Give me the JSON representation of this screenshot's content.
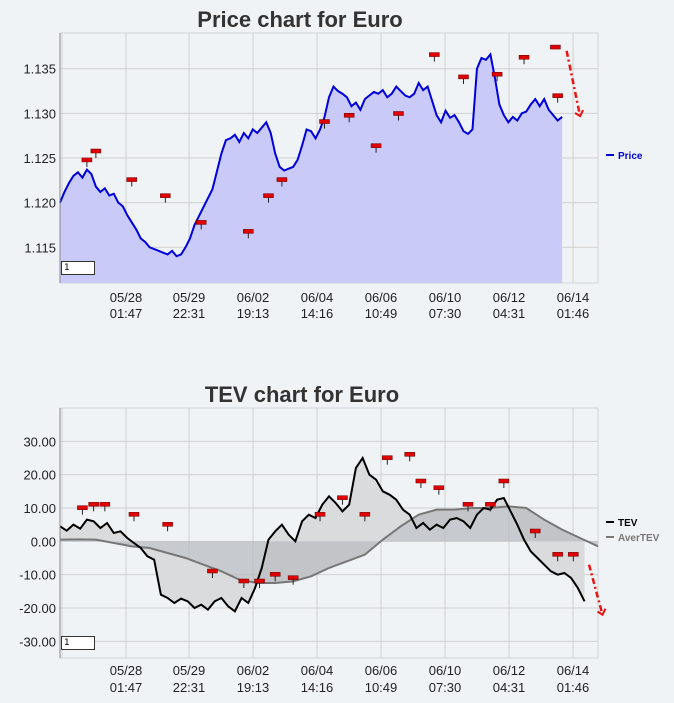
{
  "chart_data": [
    {
      "type": "area",
      "title": "Price chart for Euro",
      "ylim": [
        1.111,
        1.139
      ],
      "yticks": [
        "1.115",
        "1.120",
        "1.125",
        "1.130",
        "1.135"
      ],
      "ytick_values": [
        1.115,
        1.12,
        1.125,
        1.13,
        1.135
      ],
      "xticks": [
        {
          "date": "05/28",
          "time": "01:47"
        },
        {
          "date": "05/29",
          "time": "22:31"
        },
        {
          "date": "06/02",
          "time": "19:13"
        },
        {
          "date": "06/04",
          "time": "14:16"
        },
        {
          "date": "06/06",
          "time": "10:49"
        },
        {
          "date": "06/10",
          "time": "07:30"
        },
        {
          "date": "06/12",
          "time": "04:31"
        },
        {
          "date": "06/14",
          "time": "01:46"
        }
      ],
      "grid": true,
      "legend_position": "right",
      "series": [
        {
          "name": "Price",
          "color": "#0000dd",
          "fill": "#c9caf8",
          "x": [
            0,
            2,
            4,
            6,
            8,
            10,
            12,
            14,
            16,
            18,
            20,
            22,
            24,
            26,
            28,
            30,
            32,
            34,
            36,
            38,
            40,
            42,
            44,
            46,
            48,
            50,
            52,
            54,
            56,
            58,
            60,
            62,
            64,
            66,
            68,
            70,
            72,
            74,
            76,
            78,
            80,
            82,
            84,
            86,
            88,
            90,
            92,
            94,
            96,
            98,
            100,
            102,
            104,
            106,
            108,
            110,
            112,
            114,
            116,
            118,
            120,
            122,
            124,
            126,
            128,
            130,
            132,
            134,
            136,
            138,
            140,
            142,
            144,
            146,
            148,
            150,
            152,
            154,
            156,
            158,
            160,
            162,
            164,
            166,
            168,
            170,
            172,
            174,
            176,
            178,
            180,
            182,
            184,
            186,
            188,
            190,
            192,
            194,
            196,
            198,
            200,
            202,
            204,
            206,
            208,
            210,
            212,
            214,
            216,
            218,
            220,
            222,
            224
          ],
          "values": [
            1.12,
            1.1212,
            1.1222,
            1.123,
            1.1234,
            1.1228,
            1.1237,
            1.1232,
            1.1218,
            1.1212,
            1.1216,
            1.1208,
            1.121,
            1.12,
            1.1196,
            1.1186,
            1.1178,
            1.117,
            1.116,
            1.1156,
            1.115,
            1.1148,
            1.1146,
            1.1144,
            1.1142,
            1.1146,
            1.114,
            1.1142,
            1.115,
            1.116,
            1.1175,
            1.1185,
            1.1195,
            1.1205,
            1.1215,
            1.1235,
            1.1255,
            1.127,
            1.1272,
            1.1276,
            1.1268,
            1.1278,
            1.1272,
            1.1282,
            1.1278,
            1.1284,
            1.129,
            1.1278,
            1.1255,
            1.124,
            1.1236,
            1.1238,
            1.124,
            1.1248,
            1.1264,
            1.1282,
            1.128,
            1.1272,
            1.1282,
            1.1296,
            1.1318,
            1.133,
            1.1325,
            1.1322,
            1.1318,
            1.1308,
            1.1312,
            1.1304,
            1.1316,
            1.132,
            1.1324,
            1.1322,
            1.1326,
            1.1318,
            1.1322,
            1.133,
            1.1325,
            1.132,
            1.1318,
            1.1322,
            1.1334,
            1.1326,
            1.133,
            1.1314,
            1.1298,
            1.129,
            1.1303,
            1.1295,
            1.1298,
            1.129,
            1.128,
            1.1277,
            1.1282,
            1.135,
            1.1362,
            1.136,
            1.1366,
            1.134,
            1.131,
            1.1298,
            1.129,
            1.1296,
            1.1292,
            1.13,
            1.1302,
            1.131,
            1.1316,
            1.1308,
            1.1316,
            1.1304,
            1.1298,
            1.1292,
            1.1296
          ]
        }
      ],
      "markers_x": [
        12,
        16,
        32,
        47,
        63,
        84,
        93,
        99,
        118,
        129,
        141,
        151,
        167,
        180,
        195,
        207,
        222
      ],
      "markers_y": [
        1.124,
        1.125,
        1.1218,
        1.12,
        1.117,
        1.116,
        1.12,
        1.1218,
        1.1283,
        1.129,
        1.1256,
        1.1292,
        1.1358,
        1.1333,
        1.1336,
        1.1355,
        1.1312
      ],
      "arrow_from": [
        226,
        1.137
      ],
      "arrow_to": [
        232,
        1.1297
      ],
      "peak_marker": [
        221,
        1.1372
      ]
    },
    {
      "type": "area",
      "title": "TEV chart for Euro",
      "ylim": [
        -35,
        40
      ],
      "yticks": [
        "-30.00",
        "-20.00",
        "-10.00",
        "0.00",
        "10.00",
        "20.00",
        "30.00"
      ],
      "ytick_values": [
        -30,
        -20,
        -10,
        0,
        10,
        20,
        30
      ],
      "xticks": [
        {
          "date": "05/28",
          "time": "01:47"
        },
        {
          "date": "05/29",
          "time": "22:31"
        },
        {
          "date": "06/02",
          "time": "19:13"
        },
        {
          "date": "06/04",
          "time": "14:16"
        },
        {
          "date": "06/06",
          "time": "10:49"
        },
        {
          "date": "06/10",
          "time": "07:30"
        },
        {
          "date": "06/12",
          "time": "04:31"
        },
        {
          "date": "06/14",
          "time": "01:46"
        }
      ],
      "grid": true,
      "legend_position": "right",
      "series": [
        {
          "name": "TEV",
          "color": "#000000",
          "x": [
            0,
            3,
            6,
            9,
            12,
            15,
            18,
            21,
            24,
            27,
            30,
            33,
            36,
            39,
            42,
            45,
            48,
            51,
            54,
            57,
            60,
            63,
            66,
            69,
            72,
            75,
            78,
            81,
            84,
            87,
            90,
            93,
            96,
            99,
            102,
            105,
            108,
            111,
            114,
            117,
            120,
            123,
            126,
            129,
            132,
            135,
            138,
            141,
            144,
            147,
            150,
            153,
            156,
            159,
            162,
            165,
            168,
            171,
            174,
            177,
            180,
            183,
            186,
            189,
            192,
            195,
            198,
            201,
            204,
            207,
            210,
            213,
            216,
            219,
            222,
            225,
            228,
            231,
            234
          ],
          "values": [
            4.5,
            3.2,
            5.0,
            3.8,
            6.5,
            6.0,
            4.0,
            5.5,
            2.5,
            3.0,
            1.0,
            -0.5,
            -2.0,
            -4.5,
            -5.5,
            -16.0,
            -17.0,
            -18.5,
            -17.2,
            -18.0,
            -20.0,
            -19.0,
            -20.5,
            -18.0,
            -17.0,
            -19.5,
            -21.0,
            -17.0,
            -18.5,
            -14.0,
            -8.0,
            0.5,
            3.0,
            5.0,
            2.0,
            0.0,
            6.0,
            8.0,
            7.0,
            11.0,
            13.5,
            11.5,
            9.0,
            11.0,
            22.0,
            25.0,
            20.0,
            18.5,
            15.0,
            14.0,
            12.5,
            9.5,
            8.0,
            4.0,
            5.5,
            3.5,
            5.0,
            4.0,
            6.5,
            7.0,
            6.0,
            4.0,
            8.0,
            10.0,
            9.5,
            12.5,
            13.0,
            9.0,
            5.0,
            0.5,
            -3.0,
            -5.0,
            -7.0,
            -9.0,
            -10.0,
            -9.5,
            -11.0,
            -14.0,
            -18.0
          ]
        },
        {
          "name": "AverTEV",
          "color": "#777777",
          "x": [
            0,
            8,
            16,
            24,
            32,
            40,
            48,
            56,
            64,
            72,
            80,
            88,
            96,
            104,
            112,
            120,
            128,
            136,
            144,
            152,
            160,
            168,
            176,
            184,
            192,
            200,
            208,
            216,
            224,
            232,
            240
          ],
          "values": [
            0.5,
            0.6,
            0.5,
            -0.5,
            -1.5,
            -2.0,
            -3.5,
            -5.0,
            -7.0,
            -9.0,
            -11.5,
            -12.5,
            -12.5,
            -12.0,
            -10.5,
            -8.0,
            -6.0,
            -4.0,
            0.5,
            4.5,
            8.0,
            9.5,
            9.5,
            10.0,
            10.0,
            10.5,
            10.0,
            6.5,
            3.5,
            1.0,
            -1.5
          ]
        }
      ],
      "markers_x": [
        10,
        15,
        20,
        33,
        48,
        68,
        82,
        89,
        96,
        104,
        116,
        126,
        136,
        146,
        156,
        161,
        169,
        182,
        192,
        198,
        212,
        222,
        229
      ],
      "markers_y": [
        8,
        9,
        9,
        6,
        3,
        -11,
        -14,
        -14,
        -12,
        -13,
        6,
        11,
        6,
        23,
        24,
        16,
        14,
        9,
        9,
        16,
        1,
        -6,
        -6
      ],
      "arrow_from": [
        236,
        -7
      ],
      "arrow_to": [
        242,
        -22
      ]
    }
  ],
  "pager_labels": [
    "1",
    "1"
  ]
}
